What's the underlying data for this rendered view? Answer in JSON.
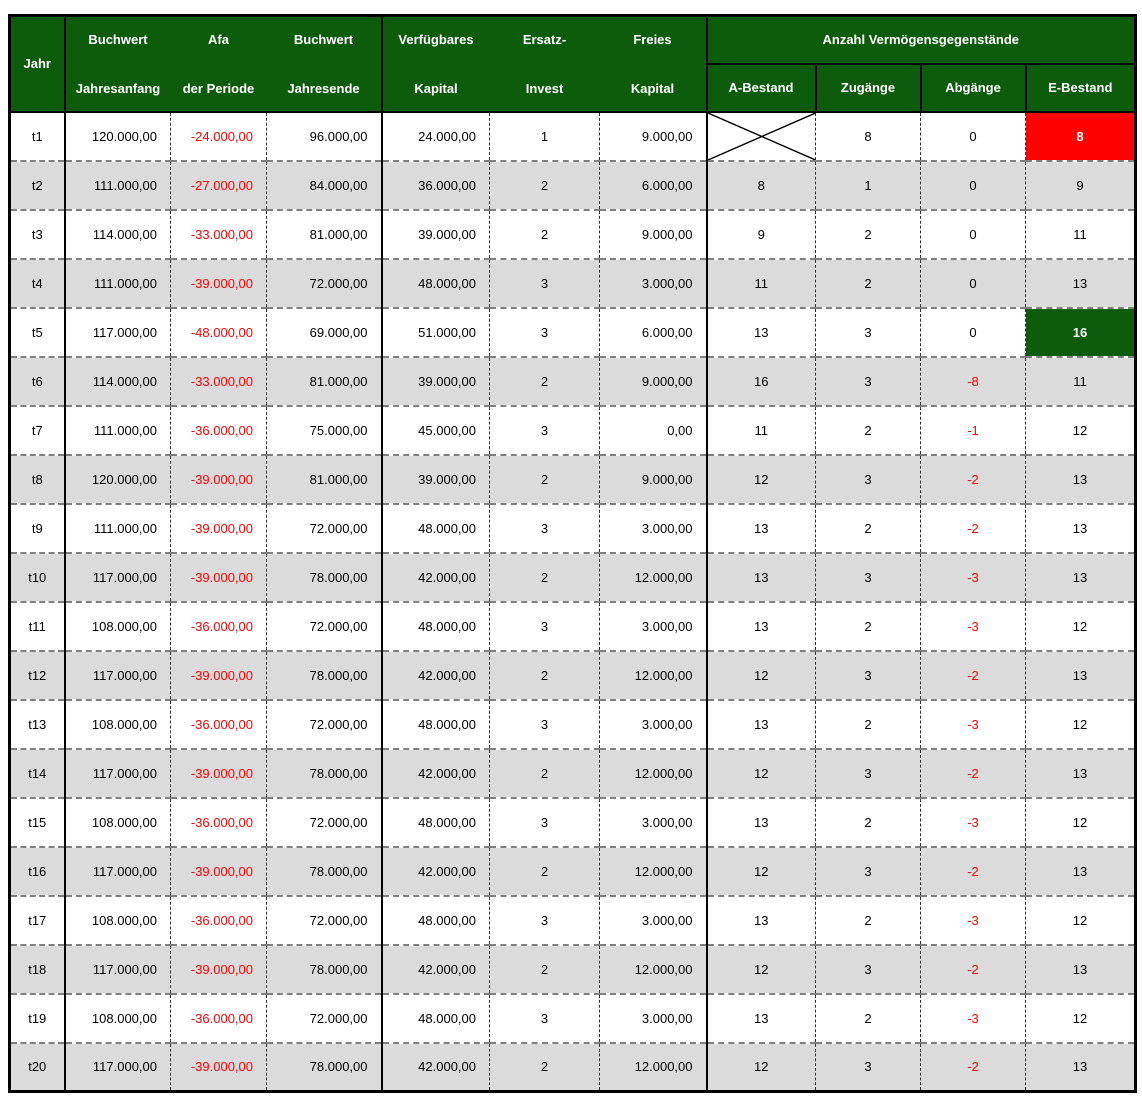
{
  "colors": {
    "header_green": "#0C5C0C",
    "stripe_gray": "#DBDBDB",
    "highlight_red": "#FF0000",
    "highlight_green": "#0C5C0C",
    "negative_red": "#FF0000"
  },
  "chart_data": {
    "type": "table",
    "header": {
      "jahr": "Jahr",
      "group1": [
        [
          "Buchwert",
          "Jahresanfang"
        ],
        [
          "Afa",
          "der Periode"
        ],
        [
          "Buchwert",
          "Jahresende"
        ]
      ],
      "group2": [
        [
          "Verfügbares",
          "Kapital"
        ],
        [
          "Ersatz-",
          "Invest"
        ],
        [
          "Freies",
          "Kapital"
        ]
      ],
      "group3_title": "Anzahl Vermögensgegenstände",
      "group3_columns": [
        "A-Bestand",
        "Zugänge",
        "Abgänge",
        "E-Bestand"
      ]
    },
    "rows": [
      {
        "jahr": "t1",
        "buchwert_jahresanfang": "120.000,00",
        "afa_der_periode": "-24.000,00",
        "buchwert_jahresende": "96.000,00",
        "verfuegbares_kapital": "24.000,00",
        "ersatz_invest": "1",
        "freies_kapital": "9.000,00",
        "a_bestand": "",
        "a_bestand_crossed": true,
        "zugaenge": "8",
        "abgaenge": "0",
        "e_bestand": "8",
        "e_bestand_highlight": "red"
      },
      {
        "jahr": "t2",
        "buchwert_jahresanfang": "111.000,00",
        "afa_der_periode": "-27.000,00",
        "buchwert_jahresende": "84.000,00",
        "verfuegbares_kapital": "36.000,00",
        "ersatz_invest": "2",
        "freies_kapital": "6.000,00",
        "a_bestand": "8",
        "zugaenge": "1",
        "abgaenge": "0",
        "e_bestand": "9"
      },
      {
        "jahr": "t3",
        "buchwert_jahresanfang": "114.000,00",
        "afa_der_periode": "-33.000,00",
        "buchwert_jahresende": "81.000,00",
        "verfuegbares_kapital": "39.000,00",
        "ersatz_invest": "2",
        "freies_kapital": "9.000,00",
        "a_bestand": "9",
        "zugaenge": "2",
        "abgaenge": "0",
        "e_bestand": "11"
      },
      {
        "jahr": "t4",
        "buchwert_jahresanfang": "111.000,00",
        "afa_der_periode": "-39.000,00",
        "buchwert_jahresende": "72.000,00",
        "verfuegbares_kapital": "48.000,00",
        "ersatz_invest": "3",
        "freies_kapital": "3.000,00",
        "a_bestand": "11",
        "zugaenge": "2",
        "abgaenge": "0",
        "e_bestand": "13"
      },
      {
        "jahr": "t5",
        "buchwert_jahresanfang": "117.000,00",
        "afa_der_periode": "-48.000,00",
        "buchwert_jahresende": "69.000,00",
        "verfuegbares_kapital": "51.000,00",
        "ersatz_invest": "3",
        "freies_kapital": "6.000,00",
        "a_bestand": "13",
        "zugaenge": "3",
        "abgaenge": "0",
        "e_bestand": "16",
        "e_bestand_highlight": "green"
      },
      {
        "jahr": "t6",
        "buchwert_jahresanfang": "114.000,00",
        "afa_der_periode": "-33.000,00",
        "buchwert_jahresende": "81.000,00",
        "verfuegbares_kapital": "39.000,00",
        "ersatz_invest": "2",
        "freies_kapital": "9.000,00",
        "a_bestand": "16",
        "zugaenge": "3",
        "abgaenge": "-8",
        "e_bestand": "11"
      },
      {
        "jahr": "t7",
        "buchwert_jahresanfang": "111.000,00",
        "afa_der_periode": "-36.000,00",
        "buchwert_jahresende": "75.000,00",
        "verfuegbares_kapital": "45.000,00",
        "ersatz_invest": "3",
        "freies_kapital": "0,00",
        "a_bestand": "11",
        "zugaenge": "2",
        "abgaenge": "-1",
        "e_bestand": "12"
      },
      {
        "jahr": "t8",
        "buchwert_jahresanfang": "120.000,00",
        "afa_der_periode": "-39.000,00",
        "buchwert_jahresende": "81.000,00",
        "verfuegbares_kapital": "39.000,00",
        "ersatz_invest": "2",
        "freies_kapital": "9.000,00",
        "a_bestand": "12",
        "zugaenge": "3",
        "abgaenge": "-2",
        "e_bestand": "13"
      },
      {
        "jahr": "t9",
        "buchwert_jahresanfang": "111.000,00",
        "afa_der_periode": "-39.000,00",
        "buchwert_jahresende": "72.000,00",
        "verfuegbares_kapital": "48.000,00",
        "ersatz_invest": "3",
        "freies_kapital": "3.000,00",
        "a_bestand": "13",
        "zugaenge": "2",
        "abgaenge": "-2",
        "e_bestand": "13"
      },
      {
        "jahr": "t10",
        "buchwert_jahresanfang": "117.000,00",
        "afa_der_periode": "-39.000,00",
        "buchwert_jahresende": "78.000,00",
        "verfuegbares_kapital": "42.000,00",
        "ersatz_invest": "2",
        "freies_kapital": "12.000,00",
        "a_bestand": "13",
        "zugaenge": "3",
        "abgaenge": "-3",
        "e_bestand": "13"
      },
      {
        "jahr": "t11",
        "buchwert_jahresanfang": "108.000,00",
        "afa_der_periode": "-36.000,00",
        "buchwert_jahresende": "72.000,00",
        "verfuegbares_kapital": "48.000,00",
        "ersatz_invest": "3",
        "freies_kapital": "3.000,00",
        "a_bestand": "13",
        "zugaenge": "2",
        "abgaenge": "-3",
        "e_bestand": "12"
      },
      {
        "jahr": "t12",
        "buchwert_jahresanfang": "117.000,00",
        "afa_der_periode": "-39.000,00",
        "buchwert_jahresende": "78.000,00",
        "verfuegbares_kapital": "42.000,00",
        "ersatz_invest": "2",
        "freies_kapital": "12.000,00",
        "a_bestand": "12",
        "zugaenge": "3",
        "abgaenge": "-2",
        "e_bestand": "13"
      },
      {
        "jahr": "t13",
        "buchwert_jahresanfang": "108.000,00",
        "afa_der_periode": "-36.000,00",
        "buchwert_jahresende": "72.000,00",
        "verfuegbares_kapital": "48.000,00",
        "ersatz_invest": "3",
        "freies_kapital": "3.000,00",
        "a_bestand": "13",
        "zugaenge": "2",
        "abgaenge": "-3",
        "e_bestand": "12"
      },
      {
        "jahr": "t14",
        "buchwert_jahresanfang": "117.000,00",
        "afa_der_periode": "-39.000,00",
        "buchwert_jahresende": "78.000,00",
        "verfuegbares_kapital": "42.000,00",
        "ersatz_invest": "2",
        "freies_kapital": "12.000,00",
        "a_bestand": "12",
        "zugaenge": "3",
        "abgaenge": "-2",
        "e_bestand": "13"
      },
      {
        "jahr": "t15",
        "buchwert_jahresanfang": "108.000,00",
        "afa_der_periode": "-36.000,00",
        "buchwert_jahresende": "72.000,00",
        "verfuegbares_kapital": "48.000,00",
        "ersatz_invest": "3",
        "freies_kapital": "3.000,00",
        "a_bestand": "13",
        "zugaenge": "2",
        "abgaenge": "-3",
        "e_bestand": "12"
      },
      {
        "jahr": "t16",
        "buchwert_jahresanfang": "117.000,00",
        "afa_der_periode": "-39.000,00",
        "buchwert_jahresende": "78.000,00",
        "verfuegbares_kapital": "42.000,00",
        "ersatz_invest": "2",
        "freies_kapital": "12.000,00",
        "a_bestand": "12",
        "zugaenge": "3",
        "abgaenge": "-2",
        "e_bestand": "13"
      },
      {
        "jahr": "t17",
        "buchwert_jahresanfang": "108.000,00",
        "afa_der_periode": "-36.000,00",
        "buchwert_jahresende": "72.000,00",
        "verfuegbares_kapital": "48.000,00",
        "ersatz_invest": "3",
        "freies_kapital": "3.000,00",
        "a_bestand": "13",
        "zugaenge": "2",
        "abgaenge": "-3",
        "e_bestand": "12"
      },
      {
        "jahr": "t18",
        "buchwert_jahresanfang": "117.000,00",
        "afa_der_periode": "-39.000,00",
        "buchwert_jahresende": "78.000,00",
        "verfuegbares_kapital": "42.000,00",
        "ersatz_invest": "2",
        "freies_kapital": "12.000,00",
        "a_bestand": "12",
        "zugaenge": "3",
        "abgaenge": "-2",
        "e_bestand": "13"
      },
      {
        "jahr": "t19",
        "buchwert_jahresanfang": "108.000,00",
        "afa_der_periode": "-36.000,00",
        "buchwert_jahresende": "72.000,00",
        "verfuegbares_kapital": "48.000,00",
        "ersatz_invest": "3",
        "freies_kapital": "3.000,00",
        "a_bestand": "13",
        "zugaenge": "2",
        "abgaenge": "-3",
        "e_bestand": "12"
      },
      {
        "jahr": "t20",
        "buchwert_jahresanfang": "117.000,00",
        "afa_der_periode": "-39.000,00",
        "buchwert_jahresende": "78.000,00",
        "verfuegbares_kapital": "42.000,00",
        "ersatz_invest": "2",
        "freies_kapital": "12.000,00",
        "a_bestand": "12",
        "zugaenge": "3",
        "abgaenge": "-2",
        "e_bestand": "13"
      }
    ]
  }
}
